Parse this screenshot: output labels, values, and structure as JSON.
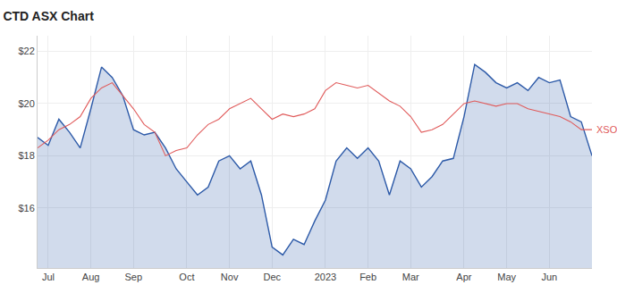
{
  "chart_data": {
    "type": "line",
    "title": "CTD ASX Chart",
    "categories": [
      null,
      "Jul",
      null,
      null,
      null,
      "Aug",
      null,
      null,
      null,
      "Sep",
      null,
      null,
      null,
      null,
      "Oct",
      null,
      null,
      null,
      "Nov",
      null,
      null,
      null,
      "Dec",
      null,
      null,
      null,
      null,
      "2023",
      null,
      null,
      null,
      "Feb",
      null,
      null,
      null,
      "Mar",
      null,
      null,
      null,
      null,
      "Apr",
      null,
      null,
      null,
      "May",
      null,
      null,
      null,
      "Jun",
      null,
      null,
      null,
      null
    ],
    "series": [
      {
        "color": "#2d5aa8",
        "type": "area",
        "values": [
          18.7,
          18.4,
          19.4,
          18.9,
          18.3,
          19.8,
          21.4,
          21.0,
          20.3,
          19.0,
          18.8,
          18.9,
          18.3,
          17.5,
          17.0,
          16.5,
          16.8,
          17.8,
          18.0,
          17.5,
          17.8,
          16.5,
          14.5,
          14.2,
          14.8,
          14.6,
          15.5,
          16.3,
          17.8,
          18.3,
          17.9,
          18.3,
          17.8,
          16.5,
          17.8,
          17.5,
          16.8,
          17.2,
          17.8,
          17.9,
          19.5,
          21.5,
          21.2,
          20.8,
          20.6,
          20.8,
          20.5,
          21.0,
          20.8,
          20.9,
          19.5,
          19.3,
          18.0
        ]
      },
      {
        "name": "XSO",
        "color": "#e05a5a",
        "type": "line",
        "values": [
          18.3,
          18.6,
          19.0,
          19.2,
          19.5,
          20.2,
          20.6,
          20.8,
          20.3,
          19.8,
          19.2,
          18.9,
          18.0,
          18.2,
          18.3,
          18.8,
          19.2,
          19.4,
          19.8,
          20.0,
          20.2,
          19.8,
          19.4,
          19.6,
          19.5,
          19.6,
          19.8,
          20.5,
          20.8,
          20.7,
          20.6,
          20.7,
          20.4,
          20.1,
          19.9,
          19.5,
          18.9,
          19.0,
          19.2,
          19.6,
          20.0,
          20.1,
          20.0,
          19.9,
          20.0,
          20.0,
          19.8,
          19.7,
          19.6,
          19.5,
          19.3,
          19.0,
          19.0
        ]
      }
    ],
    "ylim": [
      13.7,
      22.6
    ],
    "yticks": [
      {
        "value": 16,
        "label": "$16"
      },
      {
        "value": 18,
        "label": "$18"
      },
      {
        "value": 20,
        "label": "$20"
      },
      {
        "value": 22,
        "label": "$22"
      }
    ],
    "grid": true
  }
}
